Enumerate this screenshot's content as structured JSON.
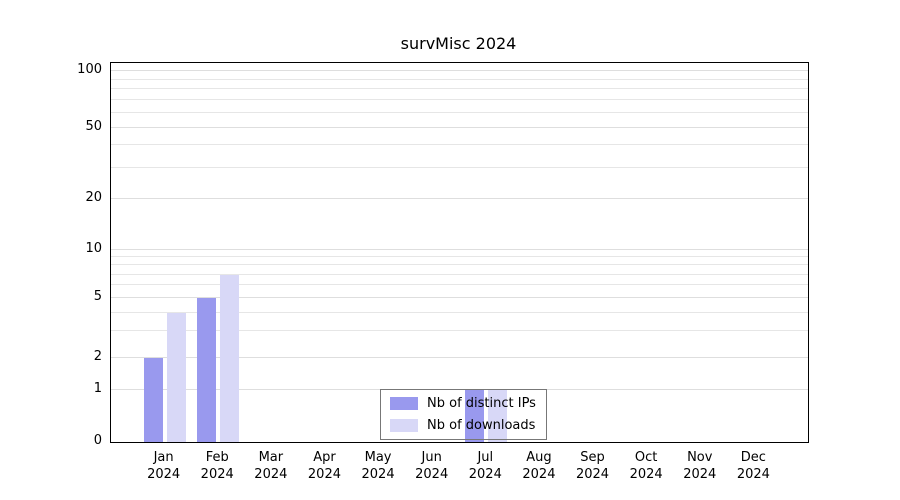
{
  "title": "survMisc 2024",
  "chart_data": {
    "type": "bar",
    "title": "survMisc 2024",
    "categories": [
      {
        "month": "Jan",
        "year": "2024"
      },
      {
        "month": "Feb",
        "year": "2024"
      },
      {
        "month": "Mar",
        "year": "2024"
      },
      {
        "month": "Apr",
        "year": "2024"
      },
      {
        "month": "May",
        "year": "2024"
      },
      {
        "month": "Jun",
        "year": "2024"
      },
      {
        "month": "Jul",
        "year": "2024"
      },
      {
        "month": "Aug",
        "year": "2024"
      },
      {
        "month": "Sep",
        "year": "2024"
      },
      {
        "month": "Oct",
        "year": "2024"
      },
      {
        "month": "Nov",
        "year": "2024"
      },
      {
        "month": "Dec",
        "year": "2024"
      }
    ],
    "series": [
      {
        "name": "Nb of distinct IPs",
        "color": "#9999ee",
        "values": [
          2,
          5,
          0,
          0,
          0,
          0,
          1,
          0,
          0,
          0,
          0,
          0
        ]
      },
      {
        "name": "Nb of downloads",
        "color": "#d8d8f7",
        "values": [
          4,
          7,
          0,
          0,
          0,
          0,
          1,
          0,
          0,
          0,
          0,
          0
        ]
      }
    ],
    "y_ticks": [
      0,
      1,
      2,
      5,
      10,
      20,
      50,
      100
    ],
    "y_minor_gridlines": [
      3,
      4,
      6,
      7,
      8,
      9,
      30,
      40,
      60,
      70,
      80,
      90
    ],
    "y_scale": "log",
    "ylim": [
      0,
      100
    ],
    "grid": true,
    "legend_position": "bottom-center-inside"
  }
}
